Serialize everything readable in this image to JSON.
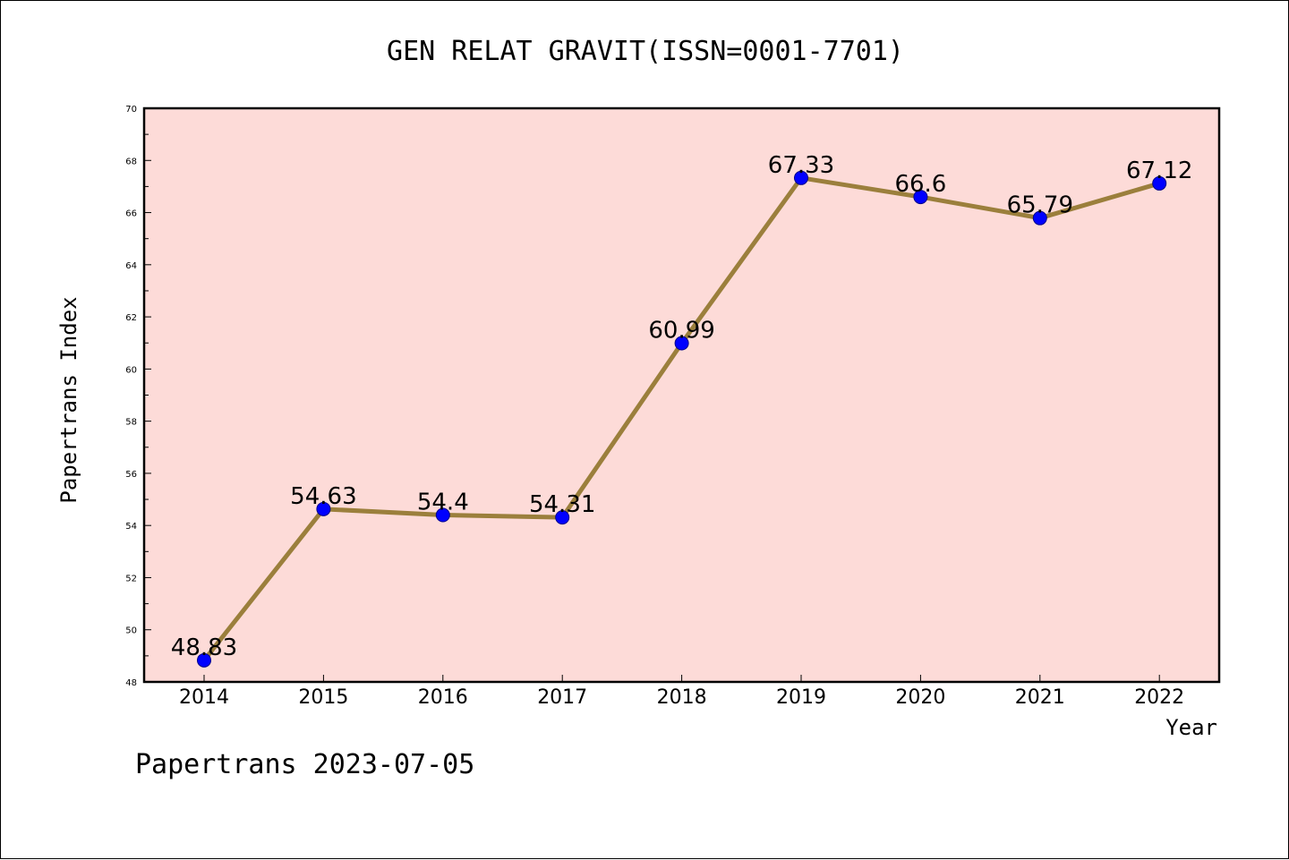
{
  "chart_data": {
    "type": "line",
    "title": "GEN RELAT GRAVIT(ISSN=0001-7701)",
    "xlabel": "Year",
    "ylabel": "Papertrans Index",
    "categories": [
      "2014",
      "2015",
      "2016",
      "2017",
      "2018",
      "2019",
      "2020",
      "2021",
      "2022"
    ],
    "series": [
      {
        "values": [
          48.83,
          54.63,
          54.4,
          54.31,
          60.99,
          67.33,
          66.6,
          65.79,
          67.12
        ],
        "labels": [
          "48.83",
          "54.63",
          "54.4",
          "54.31",
          "60.99",
          "67.33",
          "66.6",
          "65.79",
          "67.12"
        ]
      }
    ],
    "ylim": [
      48,
      70
    ],
    "yticks": [
      48,
      50,
      52,
      54,
      56,
      58,
      60,
      62,
      64,
      66,
      68,
      70
    ],
    "grid": false,
    "legend": "none",
    "colors": {
      "plot_background": "#fddbd8",
      "line": "#9b7f3c",
      "marker": "#0000ff",
      "axes": "#000000"
    }
  },
  "footer": "Papertrans 2023-07-05"
}
